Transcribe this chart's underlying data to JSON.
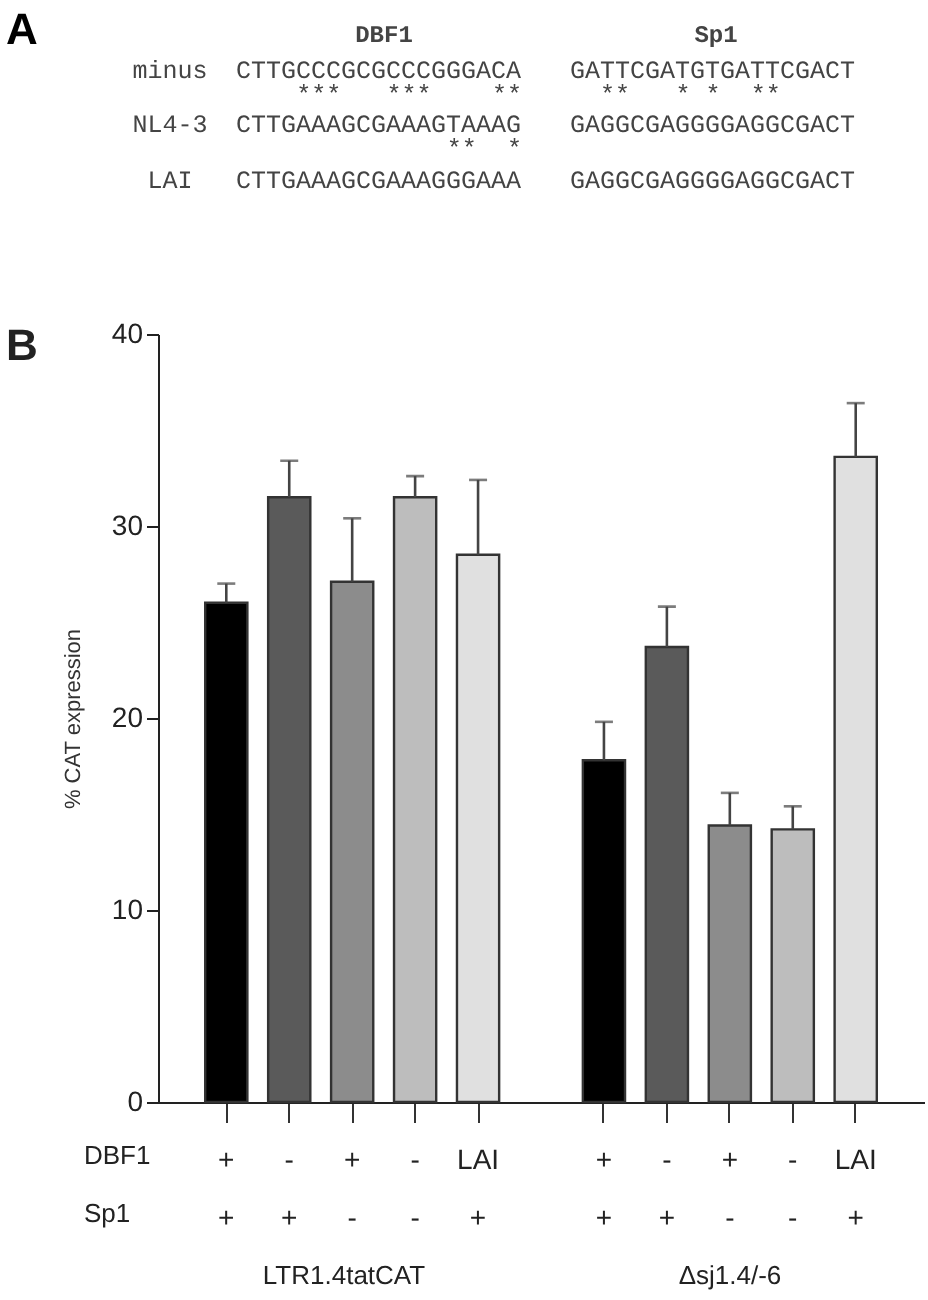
{
  "chart_data": [
    {
      "type": "other",
      "annotations": [
        "A",
        "DBF1",
        "Sp1",
        "minus",
        "CTTGCCCGCGCCCGGGACA",
        "GATTCGATGTGATTCGACT",
        "***",
        "***",
        "**",
        "**",
        "* *",
        "**",
        "NL4-3",
        "CTTGAAAGCGAAAGTAAAG",
        "GAGGCGAGGGGAGGCGACT",
        "**",
        "*",
        "LAI",
        "CTTGAAAGCGAAAGGGAAA",
        "GAGGCGAGGGGAGGCGACT"
      ]
    },
    {
      "type": "bar",
      "ylabel": "% CAT expression",
      "categories": [
        "+\n+",
        "-\n+",
        "+\n-",
        "-\n-",
        "LAI\n+",
        null,
        "+\n+",
        "-\n+",
        "+\n-",
        "-\n-",
        "LAI\n+"
      ],
      "values": [
        26.0,
        31.5,
        27.1,
        31.5,
        28.5,
        null,
        17.8,
        23.7,
        14.4,
        14.2,
        33.6
      ],
      "errors": [
        [
          26.0,
          27.0
        ],
        [
          31.5,
          33.4
        ],
        [
          27.1,
          30.4
        ],
        [
          31.5,
          32.6
        ],
        [
          28.5,
          32.4
        ],
        null,
        [
          17.8,
          19.8
        ],
        [
          23.7,
          25.8
        ],
        [
          14.4,
          16.1
        ],
        [
          14.2,
          15.4
        ],
        [
          33.6,
          36.4
        ]
      ],
      "colors": [
        "#000000",
        "#5a5a5a",
        "#8c8c8c",
        "#bdbdbd",
        "#e0e0e0",
        null,
        "#000000",
        "#5a5a5a",
        "#8c8c8c",
        "#bdbdbd",
        "#e0e0e0"
      ],
      "ylim": [
        0,
        40
      ],
      "yticks": [
        0,
        10,
        20,
        30,
        40
      ],
      "annotations": [
        "B",
        "DBF1",
        "Sp1",
        "LTR1.4tatCAT",
        "Δsj1.4/-6"
      ]
    }
  ]
}
